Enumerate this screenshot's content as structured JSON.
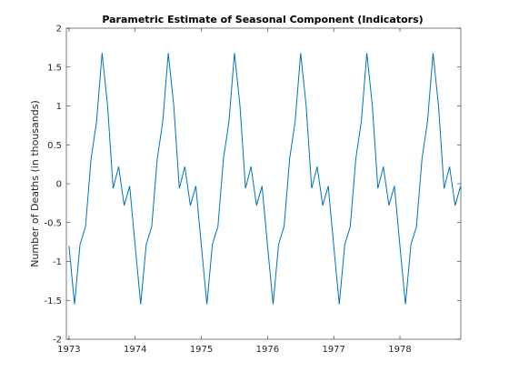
{
  "chart_data": {
    "type": "line",
    "title": "Parametric Estimate of Seasonal Component (Indicators)",
    "xlabel": "",
    "ylabel": "Number of Deaths (in thousands)",
    "xlim": [
      1972.96,
      1978.92
    ],
    "ylim": [
      -2,
      2
    ],
    "x_ticks": [
      1973,
      1974,
      1975,
      1976,
      1977,
      1978
    ],
    "x_tick_labels": [
      "1973",
      "1974",
      "1975",
      "1976",
      "1977",
      "1978"
    ],
    "y_ticks": [
      -2,
      -1.5,
      -1,
      -0.5,
      0,
      0.5,
      1,
      1.5,
      2
    ],
    "y_tick_labels": [
      "-2",
      "-1.5",
      "-1",
      "-0.5",
      "0",
      "0.5",
      "1",
      "1.5",
      "2"
    ],
    "grid": false,
    "line_color": "#0072BD",
    "series": [
      {
        "x_start": 1973,
        "x_step_months": 1,
        "x_end": 1978.9167,
        "repeat_years": 6,
        "monthly_pattern": [
          -0.8,
          -1.55,
          -0.78,
          -0.55,
          0.32,
          0.8,
          1.68,
          1.0,
          -0.06,
          0.22,
          -0.28,
          -0.03
        ]
      }
    ]
  }
}
